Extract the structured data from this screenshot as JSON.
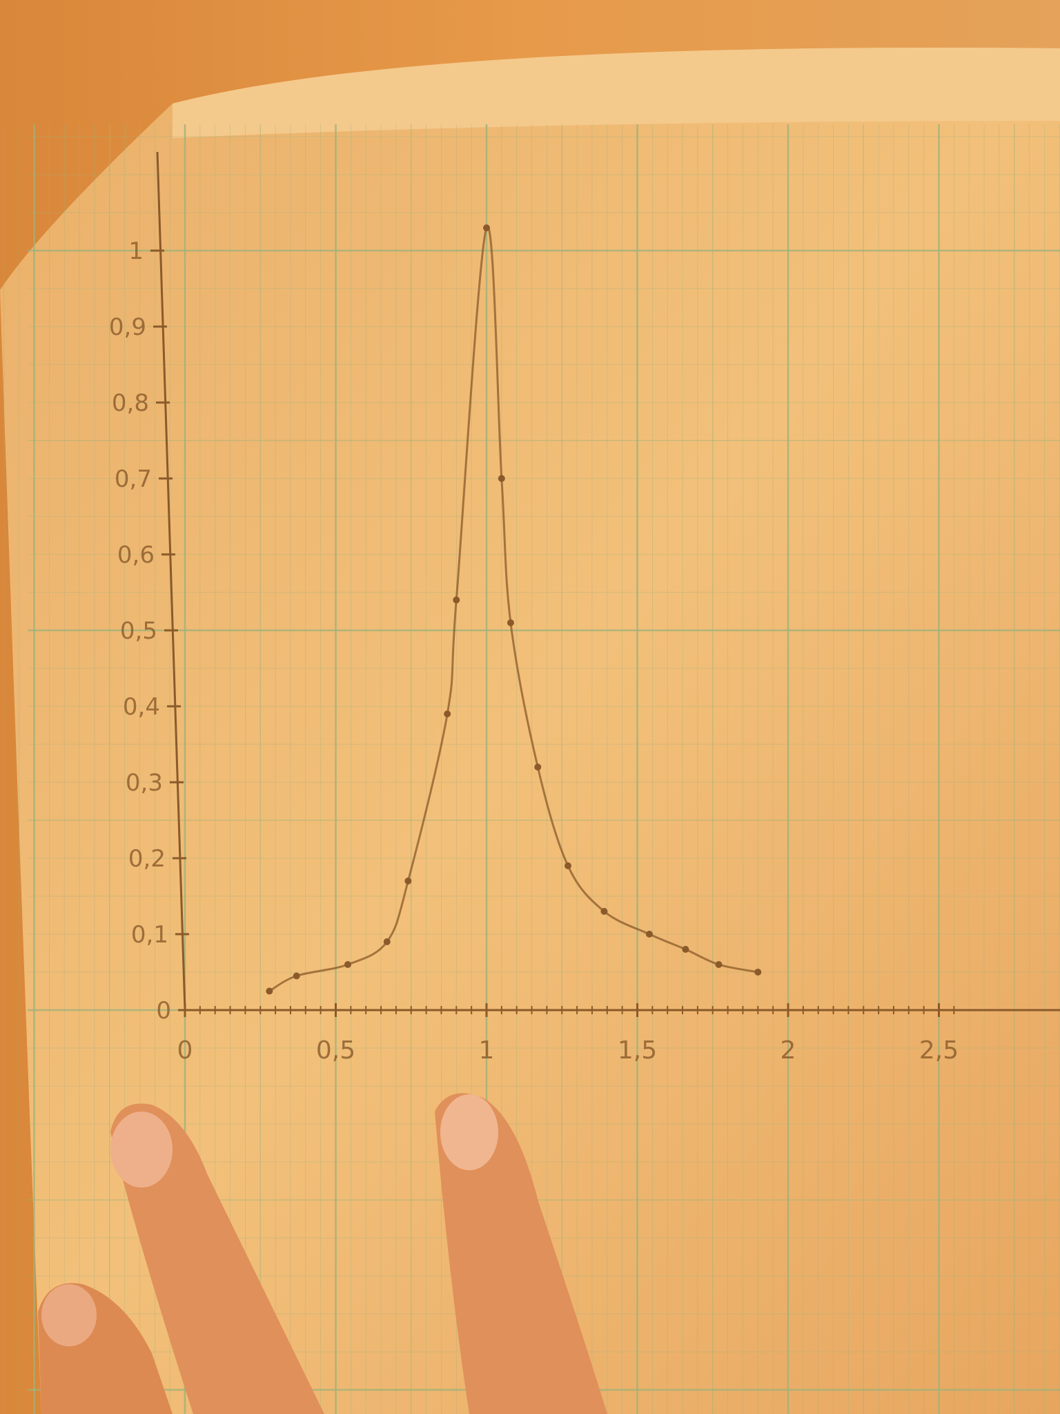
{
  "chart_data": {
    "type": "line",
    "title": "",
    "xlabel": "",
    "ylabel": "",
    "xlim": [
      0,
      2.6
    ],
    "ylim": [
      0,
      1.1
    ],
    "grid": true,
    "x_ticks": [
      0,
      0.5,
      1,
      1.5,
      2,
      2.5
    ],
    "x_tick_labels": [
      "0",
      "0,5",
      "1",
      "1,5",
      "2",
      "2,5"
    ],
    "y_ticks": [
      0,
      0.1,
      0.2,
      0.3,
      0.4,
      0.5,
      0.6,
      0.7,
      0.8,
      0.9,
      1
    ],
    "y_tick_labels": [
      "0",
      "0,1",
      "0,2",
      "0,3",
      "0,4",
      "0,5",
      "0,6",
      "0,7",
      "0,8",
      "0,9",
      "1"
    ],
    "series": [
      {
        "x": [
          0.28,
          0.37,
          0.54,
          0.67,
          0.74,
          0.87,
          0.9,
          1.0,
          1.05,
          1.08,
          1.17,
          1.27,
          1.39,
          1.54,
          1.66,
          1.77,
          1.9
        ],
        "y": [
          0.025,
          0.045,
          0.06,
          0.09,
          0.17,
          0.39,
          0.54,
          1.03,
          0.7,
          0.51,
          0.32,
          0.19,
          0.13,
          0.1,
          0.08,
          0.06,
          0.05
        ]
      }
    ],
    "colors": {
      "pencil": "#8a5a2a",
      "grid": "#9fb27a",
      "paper": "#f0b86a",
      "background": "#d98a3a"
    }
  }
}
